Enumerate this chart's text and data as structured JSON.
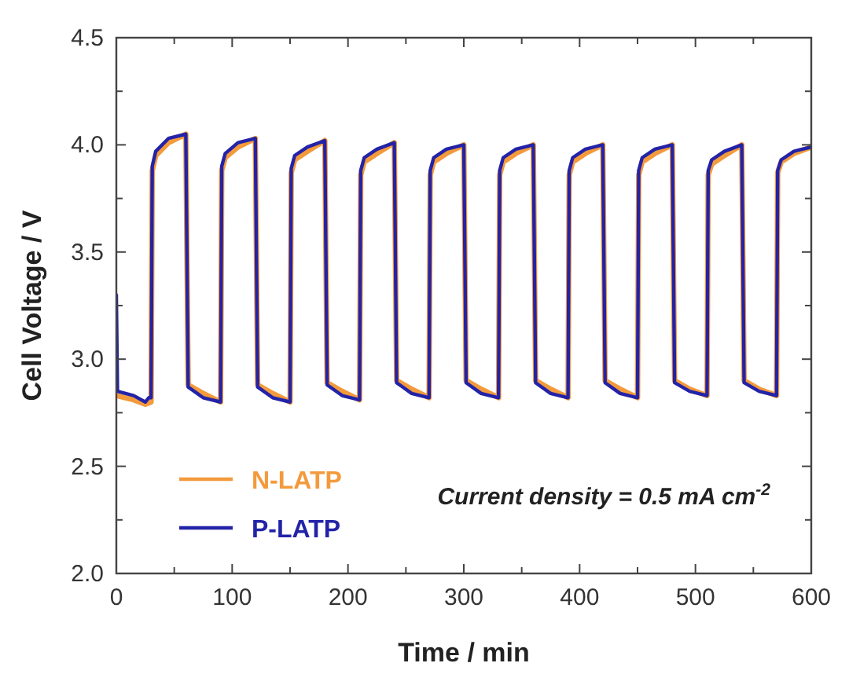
{
  "chart_data": {
    "type": "line",
    "xlabel": "Time / min",
    "ylabel": "Cell Voltage / V",
    "xlim": [
      0,
      600
    ],
    "ylim": [
      2.0,
      4.5
    ],
    "xticks": [
      0,
      {
        "value": 50,
        "label": null
      },
      100,
      {
        "value": 150,
        "label": null
      },
      200,
      {
        "value": 250,
        "label": null
      },
      300,
      {
        "value": 350,
        "label": null
      },
      400,
      {
        "value": 450,
        "label": null
      },
      500,
      {
        "value": 550,
        "label": null
      },
      600
    ],
    "yticks": [
      {
        "value": 2.0,
        "label": "2.0"
      },
      {
        "value": 2.25,
        "label": null
      },
      2.5,
      {
        "value": 2.75,
        "label": null
      },
      {
        "value": 3.0,
        "label": "3.0"
      },
      {
        "value": 3.25,
        "label": null
      },
      3.5,
      {
        "value": 3.75,
        "label": null
      },
      {
        "value": 4.0,
        "label": "4.0"
      },
      {
        "value": 4.25,
        "label": null
      },
      4.5
    ],
    "grid": false,
    "legend": "bottom left",
    "line_style": "solid",
    "marker": "none",
    "annotations": [
      "Current density = 0.5 mA cm$^{-2}$"
    ],
    "series": [
      {
        "name": "N-LATP",
        "color": "#f39a3c",
        "x": [
          0,
          15,
          25,
          30,
          31,
          34,
          45,
          60,
          62,
          75,
          90,
          91,
          94,
          105,
          120,
          122,
          135,
          150,
          151,
          154,
          165,
          180,
          182,
          195,
          210,
          211,
          214,
          225,
          240,
          242,
          255,
          270,
          271,
          274,
          285,
          300,
          302,
          315,
          330,
          331,
          334,
          345,
          360,
          362,
          375,
          390,
          391,
          394,
          405,
          420,
          422,
          435,
          450,
          451,
          454,
          465,
          480,
          482,
          495,
          510,
          511,
          514,
          525,
          540,
          542,
          555,
          570,
          571,
          574,
          585,
          600
        ],
        "values": [
          2.83,
          2.81,
          2.79,
          2.8,
          3.88,
          3.95,
          4.01,
          4.05,
          2.88,
          2.84,
          2.8,
          3.88,
          3.94,
          3.99,
          4.03,
          2.88,
          2.84,
          2.8,
          3.87,
          3.93,
          3.97,
          4.02,
          2.89,
          2.85,
          2.81,
          3.86,
          3.92,
          3.96,
          4.01,
          2.9,
          2.86,
          2.82,
          3.86,
          3.92,
          3.96,
          4.0,
          2.9,
          2.86,
          2.82,
          3.86,
          3.92,
          3.96,
          4.0,
          2.9,
          2.86,
          2.82,
          3.86,
          3.92,
          3.96,
          4.0,
          2.9,
          2.86,
          2.82,
          3.86,
          3.92,
          3.96,
          4.0,
          2.9,
          2.86,
          2.83,
          3.86,
          3.91,
          3.95,
          4.0,
          2.9,
          2.86,
          2.83,
          3.87,
          3.92,
          3.96,
          3.99
        ]
      },
      {
        "name": "P-LATP",
        "color": "#2323a8",
        "x": [
          0,
          1,
          15,
          25,
          28,
          30,
          31,
          34,
          45,
          60,
          62,
          75,
          90,
          91,
          94,
          105,
          120,
          122,
          135,
          150,
          151,
          154,
          165,
          180,
          182,
          195,
          210,
          211,
          214,
          225,
          240,
          242,
          255,
          270,
          271,
          274,
          285,
          300,
          302,
          315,
          330,
          331,
          334,
          345,
          360,
          362,
          375,
          390,
          391,
          394,
          405,
          420,
          422,
          435,
          450,
          451,
          454,
          465,
          480,
          482,
          495,
          510,
          511,
          514,
          525,
          540,
          542,
          555,
          570,
          571,
          574,
          585,
          600
        ],
        "values": [
          3.3,
          2.85,
          2.83,
          2.8,
          2.82,
          2.82,
          3.9,
          3.97,
          4.03,
          4.05,
          2.87,
          2.82,
          2.8,
          3.9,
          3.96,
          4.01,
          4.03,
          2.87,
          2.82,
          2.8,
          3.89,
          3.95,
          3.99,
          4.02,
          2.88,
          2.83,
          2.81,
          3.88,
          3.94,
          3.98,
          4.01,
          2.89,
          2.84,
          2.82,
          3.88,
          3.94,
          3.98,
          4.0,
          2.89,
          2.84,
          2.82,
          3.88,
          3.94,
          3.98,
          4.0,
          2.89,
          2.84,
          2.82,
          3.88,
          3.94,
          3.98,
          4.0,
          2.89,
          2.84,
          2.82,
          3.88,
          3.94,
          3.98,
          4.0,
          2.89,
          2.85,
          2.83,
          3.88,
          3.93,
          3.97,
          4.0,
          2.89,
          2.85,
          2.83,
          3.88,
          3.93,
          3.97,
          3.99
        ]
      }
    ]
  }
}
